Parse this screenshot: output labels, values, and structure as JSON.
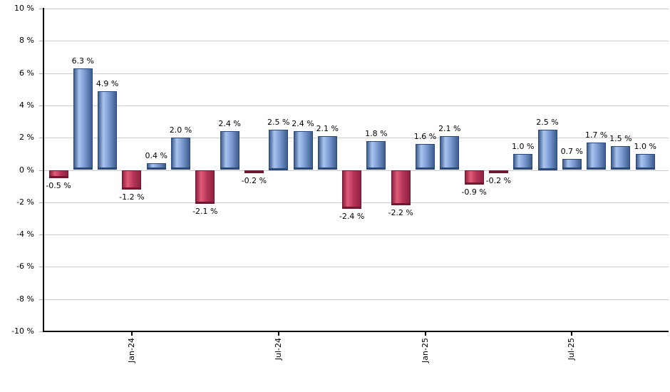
{
  "chart_data": {
    "type": "bar",
    "title": "",
    "xlabel": "",
    "ylabel": "",
    "ylim": [
      -10,
      10
    ],
    "grid": "horizontal",
    "legend": "none",
    "y_ticks": [
      {
        "value": 10,
        "label": "10 %"
      },
      {
        "value": 8,
        "label": "8 %"
      },
      {
        "value": 6,
        "label": "6 %"
      },
      {
        "value": 4,
        "label": "4 %"
      },
      {
        "value": 2,
        "label": "2 %"
      },
      {
        "value": 0,
        "label": "0 %"
      },
      {
        "value": -2,
        "label": "-2 %"
      },
      {
        "value": -4,
        "label": "-4 %"
      },
      {
        "value": -6,
        "label": "-6 %"
      },
      {
        "value": -8,
        "label": "-8 %"
      },
      {
        "value": -10,
        "label": "-10 %"
      }
    ],
    "x_ticks": [
      {
        "bar_index": 3,
        "label": "Jan-24"
      },
      {
        "bar_index": 9,
        "label": "Jul-24"
      },
      {
        "bar_index": 15,
        "label": "Jan-25"
      },
      {
        "bar_index": 21,
        "label": "Jul-25"
      }
    ],
    "bars": [
      {
        "value": -0.5,
        "label": "-0.5 %"
      },
      {
        "value": 6.3,
        "label": "6.3 %"
      },
      {
        "value": 4.9,
        "label": "4.9 %"
      },
      {
        "value": -1.2,
        "label": "-1.2 %"
      },
      {
        "value": 0.4,
        "label": "0.4 %"
      },
      {
        "value": 2.0,
        "label": "2.0 %"
      },
      {
        "value": -2.1,
        "label": "-2.1 %"
      },
      {
        "value": 2.4,
        "label": "2.4 %"
      },
      {
        "value": -0.2,
        "label": "-0.2 %"
      },
      {
        "value": 2.5,
        "label": "2.5 %"
      },
      {
        "value": 2.4,
        "label": "2.4 %"
      },
      {
        "value": 2.1,
        "label": "2.1 %"
      },
      {
        "value": -2.4,
        "label": "-2.4 %"
      },
      {
        "value": 1.8,
        "label": "1.8 %"
      },
      {
        "value": -2.2,
        "label": "-2.2 %"
      },
      {
        "value": 1.6,
        "label": "1.6 %"
      },
      {
        "value": 2.1,
        "label": "2.1 %"
      },
      {
        "value": -0.9,
        "label": "-0.9 %"
      },
      {
        "value": -0.2,
        "label": "-0.2 %"
      },
      {
        "value": 1.0,
        "label": "1.0 %"
      },
      {
        "value": 2.5,
        "label": "2.5 %"
      },
      {
        "value": 0.7,
        "label": "0.7 %"
      },
      {
        "value": 1.7,
        "label": "1.7 %"
      },
      {
        "value": 1.5,
        "label": "1.5 %"
      },
      {
        "value": 1.0,
        "label": "1.0 %"
      }
    ],
    "colors": {
      "background": "#ffffff",
      "positive_border": "#2b4a79",
      "positive_dark": "#3d5c8e",
      "positive_light": "#a9c4ef",
      "positive_mid": "#7696cd",
      "negative_border": "#6f1830",
      "negative_dark": "#8e2141",
      "negative_light": "#e25c7b",
      "negative_mid": "#b43457",
      "gridline": "#cccccc",
      "y_tick_mark": "#aaaaaa",
      "axis": "#000000",
      "label_text": "#000000"
    }
  }
}
